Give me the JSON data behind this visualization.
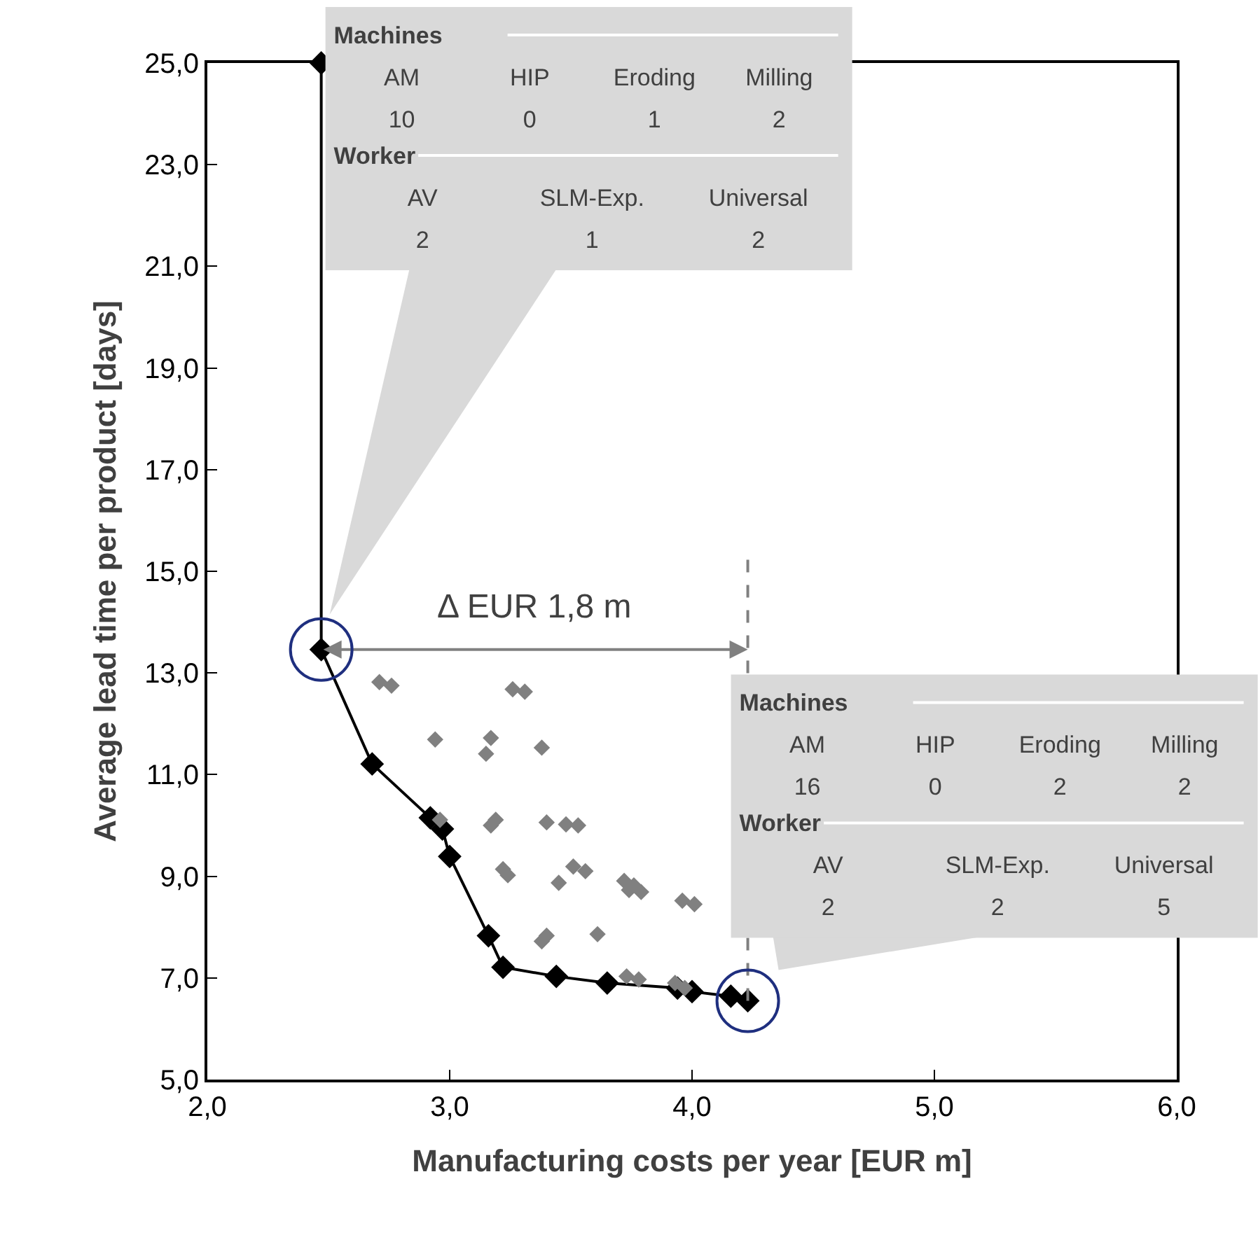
{
  "chart_data": {
    "type": "scatter",
    "xlabel": "Manufacturing costs per year [EUR m]",
    "ylabel": "Average lead time per product [days]",
    "xlim": [
      2,
      6
    ],
    "ylim": [
      5,
      25
    ],
    "xticks": [
      {
        "value": 2,
        "label": "2,0"
      },
      {
        "value": 3,
        "label": "3,0"
      },
      {
        "value": 4,
        "label": "4,0"
      },
      {
        "value": 5,
        "label": "5,0"
      },
      {
        "value": 6,
        "label": "6,0"
      }
    ],
    "yticks": [
      {
        "value": 5,
        "label": "5,0"
      },
      {
        "value": 7,
        "label": "7,0"
      },
      {
        "value": 9,
        "label": "9,0"
      },
      {
        "value": 11,
        "label": "11,0"
      },
      {
        "value": 13,
        "label": "13,0"
      },
      {
        "value": 15,
        "label": "15,0"
      },
      {
        "value": 17,
        "label": "17,0"
      },
      {
        "value": 19,
        "label": "19,0"
      },
      {
        "value": 21,
        "label": "21,0"
      },
      {
        "value": 23,
        "label": "23,0"
      },
      {
        "value": 25,
        "label": "25,0"
      }
    ],
    "grid": false,
    "marker": "diamond",
    "series": [
      {
        "type": "line",
        "color": "#000000",
        "line_style": "solid",
        "x": [
          2.47,
          2.47,
          2.68,
          2.92,
          2.97,
          3.0,
          3.16,
          3.22,
          3.44,
          3.65,
          3.94,
          4.0,
          4.16,
          4.23
        ],
        "values": [
          25,
          13.46,
          11.21,
          10.15,
          9.93,
          9.39,
          7.83,
          7.21,
          7.03,
          6.9,
          6.8,
          6.73,
          6.64,
          6.55
        ]
      },
      {
        "type": "scatter",
        "color": "#808080",
        "x": [
          2.71,
          2.76,
          3.26,
          3.31,
          2.94,
          3.17,
          3.15,
          3.38,
          2.96,
          3.17,
          3.19,
          3.4,
          3.48,
          3.53,
          3.22,
          3.24,
          3.45,
          3.51,
          3.56,
          3.72,
          3.76,
          3.79,
          3.74,
          3.96,
          4.01,
          3.38,
          3.4,
          3.61,
          3.73,
          3.78,
          3.93,
          3.97
        ],
        "values": [
          12.82,
          12.75,
          12.68,
          12.63,
          11.69,
          11.72,
          11.41,
          11.53,
          10.11,
          10.0,
          10.11,
          10.06,
          10.02,
          10.0,
          9.14,
          9.02,
          8.87,
          9.19,
          9.1,
          8.91,
          8.82,
          8.69,
          8.73,
          8.52,
          8.45,
          7.72,
          7.83,
          7.86,
          7.03,
          6.97,
          6.9,
          6.8
        ]
      }
    ],
    "ref_lines": [
      {
        "axis": "x",
        "value": 4.23,
        "color": "#808080",
        "line_style": "dashed"
      }
    ],
    "annotations": [
      "Δ EUR 1,8 m",
      "Machines",
      "AM HIP Eroding Milling",
      "10 0 1 2",
      "Worker",
      "AV SLM-Exp. Universal",
      "2 1 2",
      "Machines",
      "AM HIP Eroding Milling",
      "16 0 2 2",
      "Worker",
      "AV SLM-Exp. Universal",
      "2 2 5"
    ]
  }
}
